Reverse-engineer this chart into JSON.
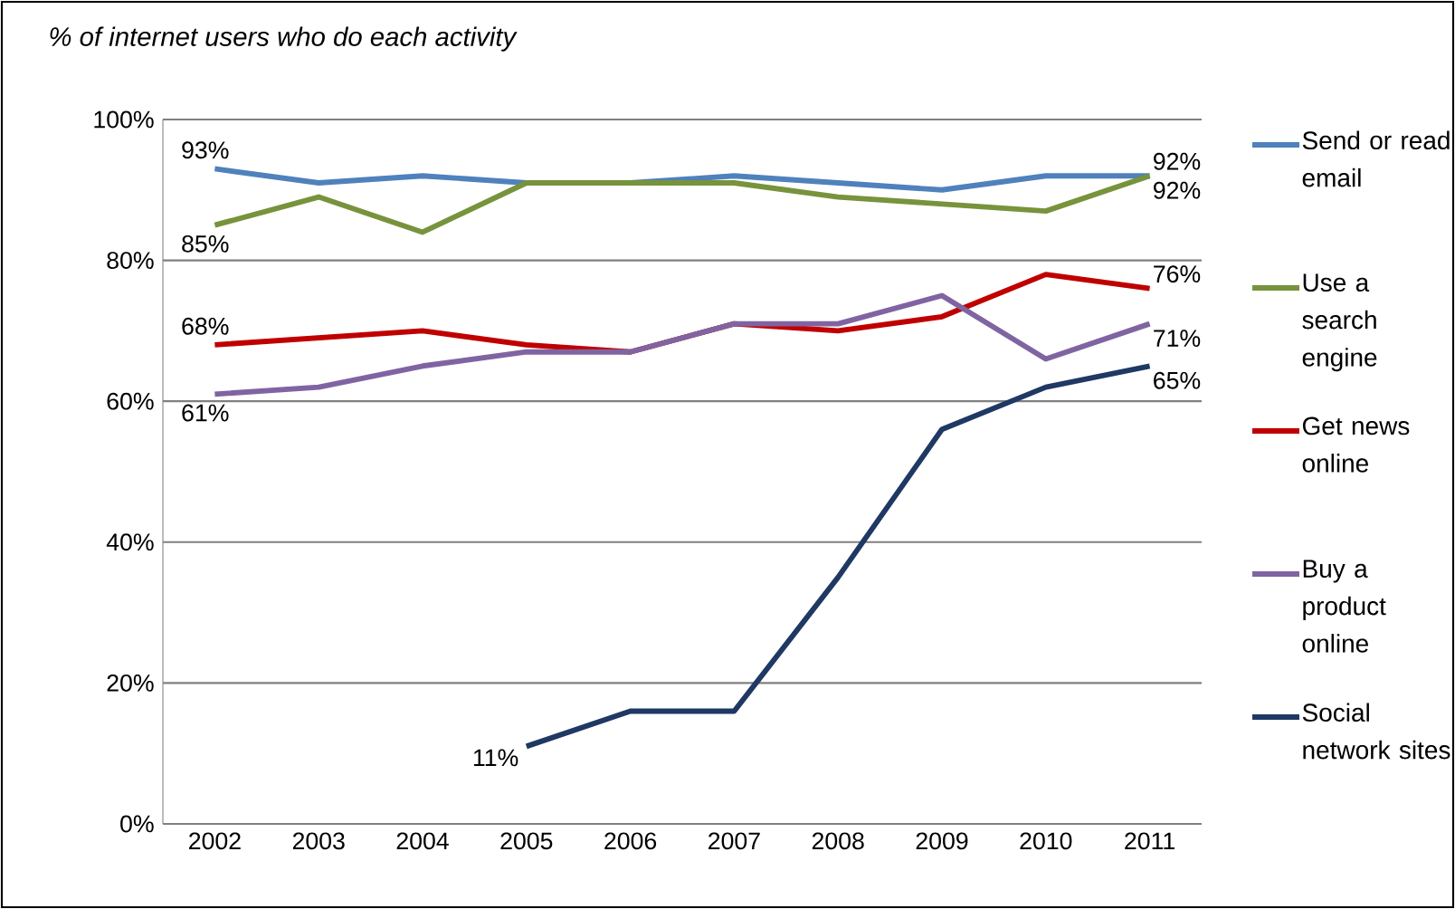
{
  "chart_data": {
    "type": "line",
    "title": "*% of internet users who do each activity*",
    "categories": [
      "2002",
      "2003",
      "2004",
      "2005",
      "2006",
      "2007",
      "2008",
      "2009",
      "2010",
      "2011"
    ],
    "series": [
      {
        "name": "Send or read email",
        "color": "#4f81bd",
        "values": [
          93,
          91,
          92,
          91,
          91,
          92,
          91,
          90,
          92,
          92
        ],
        "value_labels": [
          "93%",
          null,
          null,
          null,
          null,
          null,
          null,
          null,
          null,
          "92%"
        ]
      },
      {
        "name": "Use a search engine",
        "color": "#77933c",
        "values": [
          85,
          89,
          84,
          91,
          91,
          91,
          89,
          88,
          87,
          92
        ],
        "value_labels": [
          "85%",
          null,
          null,
          null,
          null,
          null,
          null,
          null,
          null,
          "92%"
        ]
      },
      {
        "name": "Get news online",
        "color": "#c00000",
        "values": [
          68,
          69,
          70,
          68,
          67,
          71,
          70,
          72,
          78,
          76
        ],
        "value_labels": [
          "68%",
          null,
          null,
          null,
          null,
          null,
          null,
          null,
          null,
          "76%"
        ]
      },
      {
        "name": "Buy a product online",
        "color": "#8064a2",
        "values": [
          61,
          62,
          65,
          67,
          67,
          71,
          71,
          75,
          66,
          71
        ],
        "value_labels": [
          "61%",
          null,
          null,
          null,
          null,
          null,
          null,
          null,
          null,
          "71%"
        ]
      },
      {
        "name": "Social network sites",
        "color": "#1f3864",
        "values": [
          null,
          null,
          null,
          11,
          16,
          16,
          35,
          56,
          62,
          65
        ],
        "value_labels": [
          null,
          null,
          null,
          "11%",
          null,
          null,
          null,
          null,
          null,
          "65%"
        ]
      }
    ],
    "ylim": [
      0,
      100
    ],
    "yticks": [
      {
        "value": 0,
        "label": "0%"
      },
      {
        "value": 20,
        "label": "20%"
      },
      {
        "value": 40,
        "label": "40%"
      },
      {
        "value": 60,
        "label": "60%"
      },
      {
        "value": 80,
        "label": "80%"
      },
      {
        "value": 100,
        "label": "100%"
      }
    ],
    "grid": "y",
    "legend": "right",
    "marker": "none",
    "line_style": "solid"
  }
}
